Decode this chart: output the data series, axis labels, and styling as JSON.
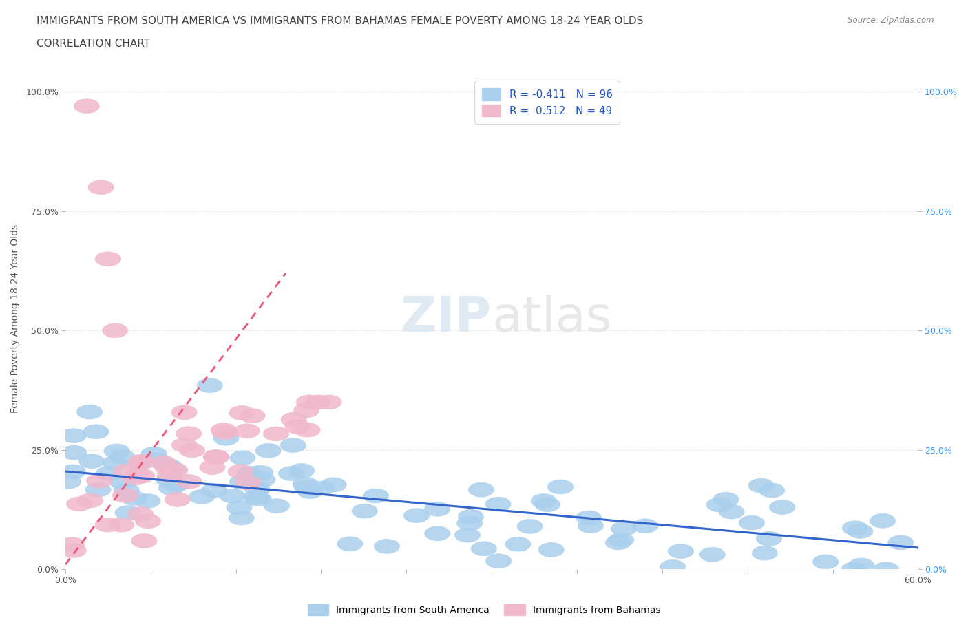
{
  "title_line1": "IMMIGRANTS FROM SOUTH AMERICA VS IMMIGRANTS FROM BAHAMAS FEMALE POVERTY AMONG 18-24 YEAR OLDS",
  "title_line2": "CORRELATION CHART",
  "source_text": "Source: ZipAtlas.com",
  "ylabel": "Female Poverty Among 18-24 Year Olds",
  "xlim": [
    0.0,
    0.6
  ],
  "ylim": [
    0.0,
    1.05
  ],
  "r_blue": -0.411,
  "n_blue": 96,
  "r_pink": 0.512,
  "n_pink": 49,
  "blue_color": "#aacfee",
  "pink_color": "#f0b8cc",
  "trendline_blue_color": "#3366cc",
  "trendline_pink_color": "#ee5577",
  "legend_r_color": "#2255cc",
  "legend_n_color": "#2255cc",
  "watermark_zip": "ZIP",
  "watermark_atlas": "atlas",
  "grid_color": "#dddddd",
  "grid_linestyle": "dotted",
  "background_color": "#ffffff",
  "title_fontsize": 11,
  "axis_label_fontsize": 10,
  "tick_fontsize": 9,
  "right_tick_color": "#3399ff",
  "yticks": [
    0.0,
    0.25,
    0.5,
    0.75,
    1.0
  ],
  "ytick_labels": [
    "0.0%",
    "25.0%",
    "50.0%",
    "75.0%",
    "100.0%"
  ],
  "xticks": [
    0.0,
    0.06,
    0.12,
    0.18,
    0.24,
    0.3,
    0.36,
    0.42,
    0.48,
    0.54,
    0.6
  ],
  "xtick_labels": [
    "0.0%",
    "",
    "",
    "",
    "",
    "",
    "",
    "",
    "",
    "",
    "60.0%"
  ],
  "blue_trend_x": [
    0.0,
    0.6
  ],
  "blue_trend_y": [
    0.205,
    0.045
  ],
  "pink_trend_x": [
    0.0,
    0.155
  ],
  "pink_trend_y": [
    0.01,
    0.62
  ]
}
